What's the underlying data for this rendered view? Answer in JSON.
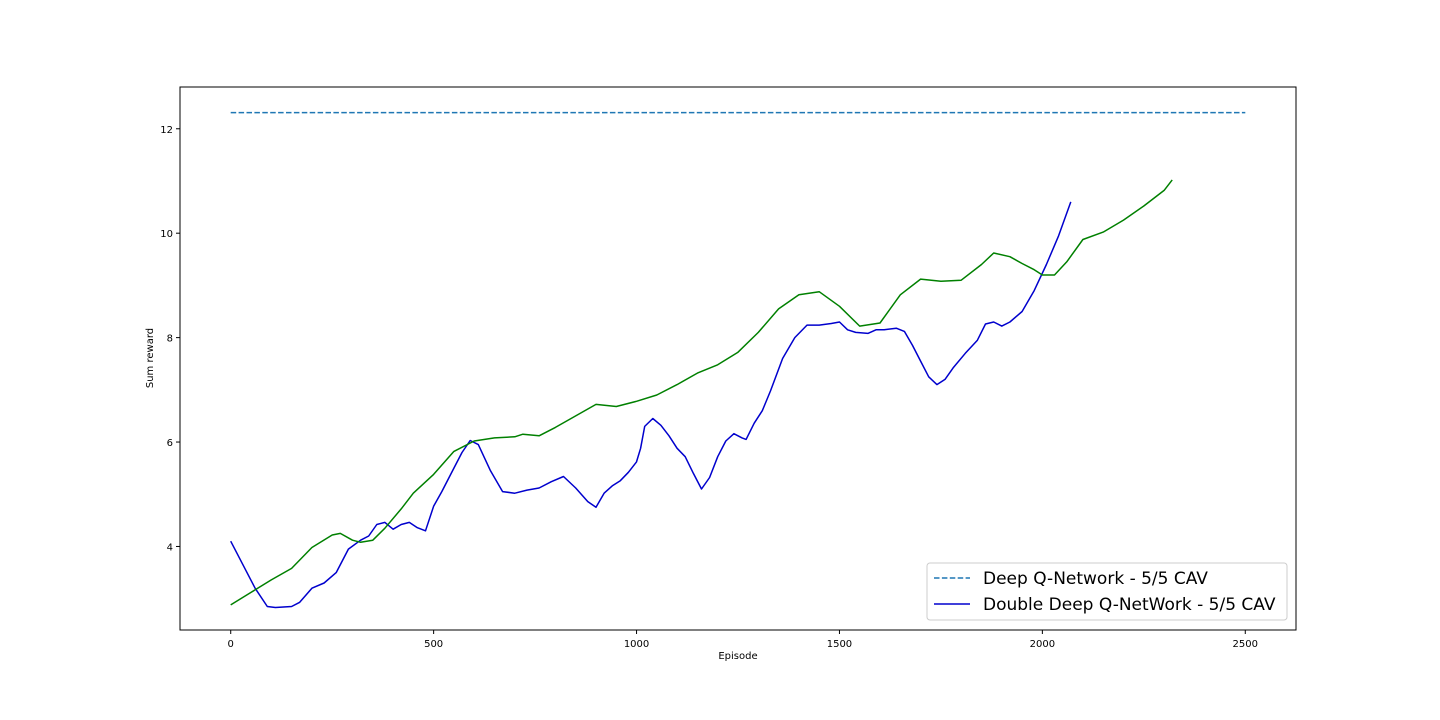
{
  "chart_data": {
    "type": "line",
    "title": "",
    "xlabel": "Episode",
    "ylabel": "Sum reward",
    "xlim": [
      -125,
      2625
    ],
    "ylim": [
      2.4,
      12.8
    ],
    "xticks": [
      0,
      500,
      1000,
      1500,
      2000,
      2500
    ],
    "yticks": [
      4,
      6,
      8,
      10,
      12
    ],
    "grid": false,
    "legend_position": "lower-right",
    "series": [
      {
        "name": "Deep Q-Network - 5/5 CAV",
        "color": "#1f77b4",
        "style": "dashed",
        "x": [
          0,
          2500
        ],
        "y": [
          12.31,
          12.31
        ]
      },
      {
        "name": "Double Deep Q-NetWork - 5/5 CAV",
        "color": "#0000cd",
        "style": "solid",
        "x": [
          0,
          30,
          60,
          90,
          110,
          130,
          150,
          170,
          200,
          230,
          260,
          290,
          320,
          340,
          360,
          380,
          400,
          420,
          440,
          460,
          480,
          500,
          520,
          550,
          570,
          590,
          610,
          640,
          670,
          700,
          730,
          760,
          790,
          820,
          850,
          880,
          900,
          920,
          940,
          960,
          980,
          1000,
          1010,
          1020,
          1040,
          1060,
          1080,
          1100,
          1120,
          1140,
          1160,
          1180,
          1200,
          1220,
          1240,
          1260,
          1270,
          1290,
          1310,
          1330,
          1360,
          1390,
          1420,
          1450,
          1480,
          1500,
          1520,
          1540,
          1570,
          1590,
          1610,
          1640,
          1660,
          1680,
          1700,
          1720,
          1740,
          1760,
          1780,
          1810,
          1840,
          1860,
          1880,
          1900,
          1920,
          1950,
          1980,
          2010,
          2040,
          2070
        ],
        "y": [
          4.1,
          3.65,
          3.2,
          2.85,
          2.83,
          2.84,
          2.85,
          2.93,
          3.2,
          3.3,
          3.5,
          3.95,
          4.12,
          4.2,
          4.42,
          4.46,
          4.33,
          4.42,
          4.46,
          4.36,
          4.3,
          4.77,
          5.05,
          5.5,
          5.8,
          6.03,
          5.95,
          5.45,
          5.05,
          5.02,
          5.08,
          5.12,
          5.24,
          5.34,
          5.12,
          4.86,
          4.75,
          5.02,
          5.16,
          5.26,
          5.42,
          5.62,
          5.88,
          6.3,
          6.45,
          6.32,
          6.12,
          5.88,
          5.72,
          5.4,
          5.1,
          5.32,
          5.72,
          6.02,
          6.16,
          6.08,
          6.05,
          6.36,
          6.6,
          6.98,
          7.6,
          8.0,
          8.24,
          8.24,
          8.27,
          8.3,
          8.15,
          8.1,
          8.08,
          8.15,
          8.15,
          8.18,
          8.12,
          7.85,
          7.55,
          7.25,
          7.1,
          7.2,
          7.42,
          7.7,
          7.95,
          8.26,
          8.3,
          8.22,
          8.3,
          8.5,
          8.9,
          9.4,
          9.95,
          10.6
        ]
      },
      {
        "name": "",
        "color": "#008000",
        "style": "solid",
        "x": [
          0,
          50,
          100,
          150,
          200,
          250,
          270,
          300,
          320,
          350,
          380,
          420,
          450,
          500,
          550,
          600,
          650,
          700,
          720,
          760,
          800,
          850,
          900,
          950,
          1000,
          1050,
          1100,
          1150,
          1200,
          1250,
          1300,
          1350,
          1400,
          1450,
          1500,
          1550,
          1600,
          1650,
          1700,
          1750,
          1800,
          1850,
          1880,
          1920,
          1950,
          1980,
          2000,
          2030,
          2060,
          2100,
          2150,
          2200,
          2250,
          2300,
          2320
        ],
        "y": [
          2.88,
          3.12,
          3.36,
          3.58,
          3.98,
          4.22,
          4.25,
          4.12,
          4.08,
          4.12,
          4.35,
          4.72,
          5.02,
          5.38,
          5.82,
          6.02,
          6.08,
          6.1,
          6.15,
          6.12,
          6.28,
          6.5,
          6.72,
          6.68,
          6.78,
          6.9,
          7.1,
          7.32,
          7.48,
          7.72,
          8.1,
          8.55,
          8.82,
          8.88,
          8.6,
          8.22,
          8.28,
          8.82,
          9.12,
          9.08,
          9.1,
          9.4,
          9.62,
          9.55,
          9.42,
          9.3,
          9.2,
          9.2,
          9.45,
          9.88,
          10.02,
          10.25,
          10.52,
          10.82,
          11.02
        ]
      }
    ]
  }
}
